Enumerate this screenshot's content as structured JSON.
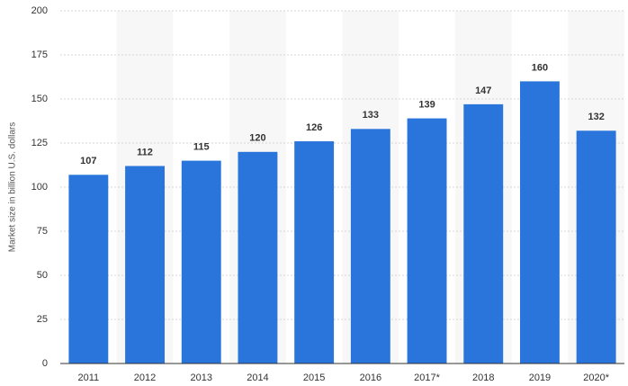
{
  "chart_data": {
    "type": "bar",
    "y_label": "Market size in billion U.S. dollars",
    "categories": [
      "2011",
      "2012",
      "2013",
      "2014",
      "2015",
      "2016",
      "2017*",
      "2018",
      "2019",
      "2020*"
    ],
    "values": [
      107,
      112,
      115,
      120,
      126,
      133,
      139,
      147,
      160,
      132
    ],
    "color": "#2a75dc",
    "ylim": [
      0,
      200
    ],
    "yticks": [
      0,
      25,
      50,
      75,
      100,
      125,
      150,
      175,
      200
    ],
    "grid": true
  }
}
